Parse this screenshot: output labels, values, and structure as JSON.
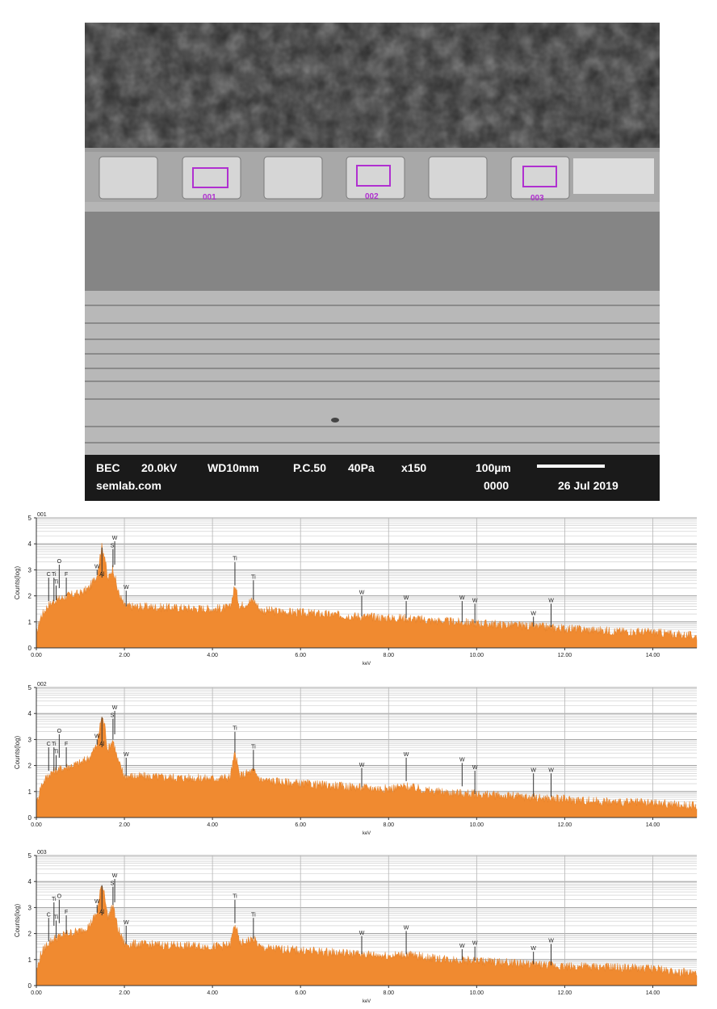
{
  "sem_image": {
    "info_row1": {
      "mode": "BEC",
      "voltage": "20.0kV",
      "wd": "WD10mm",
      "pc": "P.C.50",
      "pressure": "40Pa",
      "magnification": "x150",
      "scale_label": "100µm"
    },
    "info_row2": {
      "site": "semlab.com",
      "counter": "0000",
      "date": "26 Jul 2019"
    },
    "roi_labels": [
      "001",
      "002",
      "003"
    ],
    "roi_color": "#b030d0"
  },
  "chart_data": [
    {
      "type": "area",
      "title": "001",
      "xlabel": "keV",
      "ylabel": "Counts(log)",
      "xlim": [
        0,
        15
      ],
      "ylim": [
        0,
        5
      ],
      "x_ticks": [
        "0.00",
        "2.00",
        "4.00",
        "6.00",
        "8.00",
        "10.00",
        "12.00",
        "14.00"
      ],
      "y_ticks": [
        "0",
        "1",
        "2",
        "3",
        "4",
        "5"
      ],
      "grid": true,
      "color": "#f08a30",
      "baseline": [
        [
          0.0,
          0.5
        ],
        [
          0.1,
          1.2
        ],
        [
          0.25,
          1.6
        ],
        [
          0.4,
          1.8
        ],
        [
          0.7,
          2.0
        ],
        [
          1.0,
          2.1
        ],
        [
          1.2,
          2.3
        ],
        [
          1.38,
          2.8
        ],
        [
          1.48,
          3.9
        ],
        [
          1.55,
          3.6
        ],
        [
          1.62,
          2.6
        ],
        [
          1.74,
          3.1
        ],
        [
          1.85,
          2.2
        ],
        [
          2.0,
          1.6
        ],
        [
          3.0,
          1.55
        ],
        [
          4.0,
          1.5
        ],
        [
          4.4,
          1.55
        ],
        [
          4.51,
          2.4
        ],
        [
          4.62,
          1.6
        ],
        [
          4.93,
          1.85
        ],
        [
          5.1,
          1.45
        ],
        [
          6.0,
          1.35
        ],
        [
          7.0,
          1.25
        ],
        [
          8.0,
          1.15
        ],
        [
          8.4,
          1.15
        ],
        [
          9.0,
          1.05
        ],
        [
          10.0,
          0.95
        ],
        [
          11.0,
          0.85
        ],
        [
          12.0,
          0.75
        ],
        [
          13.0,
          0.65
        ],
        [
          14.0,
          0.6
        ],
        [
          15.0,
          0.45
        ]
      ],
      "markers": [
        {
          "label": "C",
          "x": 0.28,
          "y": 2.7
        },
        {
          "label": "Ti",
          "x": 0.4,
          "y": 2.7
        },
        {
          "label": "Ti",
          "x": 0.45,
          "y": 2.4
        },
        {
          "label": "O",
          "x": 0.52,
          "y": 3.2
        },
        {
          "label": "F",
          "x": 0.68,
          "y": 2.7
        },
        {
          "label": "W",
          "x": 1.38,
          "y": 3.0
        },
        {
          "label": "Al",
          "x": 1.49,
          "y": 2.7
        },
        {
          "label": "Si",
          "x": 1.74,
          "y": 3.8
        },
        {
          "label": "W",
          "x": 1.78,
          "y": 4.1
        },
        {
          "label": "W",
          "x": 2.04,
          "y": 2.2
        },
        {
          "label": "Ti",
          "x": 4.51,
          "y": 3.3
        },
        {
          "label": "Ti",
          "x": 4.93,
          "y": 2.6
        },
        {
          "label": "W",
          "x": 7.39,
          "y": 2.0
        },
        {
          "label": "W",
          "x": 8.4,
          "y": 1.8
        },
        {
          "label": "W",
          "x": 9.67,
          "y": 1.8
        },
        {
          "label": "W",
          "x": 9.96,
          "y": 1.7
        },
        {
          "label": "W",
          "x": 11.29,
          "y": 1.2
        },
        {
          "label": "W",
          "x": 11.69,
          "y": 1.7
        }
      ]
    },
    {
      "type": "area",
      "title": "002",
      "xlabel": "keV",
      "ylabel": "Counts(log)",
      "xlim": [
        0,
        15
      ],
      "ylim": [
        0,
        5
      ],
      "x_ticks": [
        "0.00",
        "2.00",
        "4.00",
        "6.00",
        "8.00",
        "10.00",
        "12.00",
        "14.00"
      ],
      "y_ticks": [
        "0",
        "1",
        "2",
        "3",
        "4",
        "5"
      ],
      "grid": true,
      "color": "#f08a30",
      "baseline": [
        [
          0.0,
          0.5
        ],
        [
          0.1,
          1.2
        ],
        [
          0.25,
          1.6
        ],
        [
          0.4,
          1.8
        ],
        [
          0.7,
          1.95
        ],
        [
          1.0,
          2.1
        ],
        [
          1.2,
          2.3
        ],
        [
          1.38,
          2.8
        ],
        [
          1.48,
          3.9
        ],
        [
          1.55,
          3.6
        ],
        [
          1.62,
          2.6
        ],
        [
          1.74,
          3.0
        ],
        [
          1.85,
          2.2
        ],
        [
          2.0,
          1.6
        ],
        [
          3.0,
          1.55
        ],
        [
          4.0,
          1.5
        ],
        [
          4.4,
          1.55
        ],
        [
          4.51,
          2.5
        ],
        [
          4.62,
          1.6
        ],
        [
          4.93,
          1.8
        ],
        [
          5.1,
          1.45
        ],
        [
          6.0,
          1.3
        ],
        [
          7.0,
          1.2
        ],
        [
          8.0,
          1.1
        ],
        [
          8.4,
          1.2
        ],
        [
          9.0,
          1.0
        ],
        [
          10.0,
          0.9
        ],
        [
          11.0,
          0.8
        ],
        [
          12.0,
          0.7
        ],
        [
          13.0,
          0.6
        ],
        [
          14.0,
          0.55
        ],
        [
          15.0,
          0.45
        ]
      ],
      "markers": [
        {
          "label": "C",
          "x": 0.28,
          "y": 2.7
        },
        {
          "label": "Ti",
          "x": 0.4,
          "y": 2.7
        },
        {
          "label": "Ti",
          "x": 0.45,
          "y": 2.4
        },
        {
          "label": "O",
          "x": 0.52,
          "y": 3.2
        },
        {
          "label": "F",
          "x": 0.68,
          "y": 2.7
        },
        {
          "label": "W",
          "x": 1.38,
          "y": 3.0
        },
        {
          "label": "Al",
          "x": 1.49,
          "y": 2.7
        },
        {
          "label": "Si",
          "x": 1.74,
          "y": 3.8
        },
        {
          "label": "W",
          "x": 1.78,
          "y": 4.1
        },
        {
          "label": "W",
          "x": 2.04,
          "y": 2.3
        },
        {
          "label": "Ti",
          "x": 4.51,
          "y": 3.3
        },
        {
          "label": "Ti",
          "x": 4.93,
          "y": 2.6
        },
        {
          "label": "W",
          "x": 7.39,
          "y": 1.9
        },
        {
          "label": "W",
          "x": 8.4,
          "y": 2.3
        },
        {
          "label": "W",
          "x": 9.67,
          "y": 2.1
        },
        {
          "label": "W",
          "x": 9.96,
          "y": 1.8
        },
        {
          "label": "W",
          "x": 11.29,
          "y": 1.7
        },
        {
          "label": "W",
          "x": 11.69,
          "y": 1.7
        }
      ]
    },
    {
      "type": "area",
      "title": "003",
      "xlabel": "keV",
      "ylabel": "Counts(log)",
      "xlim": [
        0,
        15
      ],
      "ylim": [
        0,
        5
      ],
      "x_ticks": [
        "0.00",
        "2.00",
        "4.00",
        "6.00",
        "8.00",
        "10.00",
        "12.00",
        "14.00"
      ],
      "y_ticks": [
        "0",
        "1",
        "2",
        "3",
        "4",
        "5"
      ],
      "grid": true,
      "color": "#f08a30",
      "baseline": [
        [
          0.0,
          0.5
        ],
        [
          0.1,
          1.2
        ],
        [
          0.25,
          1.6
        ],
        [
          0.4,
          1.8
        ],
        [
          0.7,
          2.0
        ],
        [
          1.0,
          2.1
        ],
        [
          1.2,
          2.3
        ],
        [
          1.38,
          2.8
        ],
        [
          1.48,
          3.9
        ],
        [
          1.55,
          3.6
        ],
        [
          1.62,
          2.6
        ],
        [
          1.74,
          3.1
        ],
        [
          1.85,
          2.2
        ],
        [
          2.0,
          1.6
        ],
        [
          3.0,
          1.55
        ],
        [
          4.0,
          1.5
        ],
        [
          4.4,
          1.55
        ],
        [
          4.51,
          2.4
        ],
        [
          4.62,
          1.6
        ],
        [
          4.93,
          1.8
        ],
        [
          5.1,
          1.45
        ],
        [
          6.0,
          1.35
        ],
        [
          7.0,
          1.25
        ],
        [
          8.0,
          1.15
        ],
        [
          8.4,
          1.2
        ],
        [
          9.0,
          1.05
        ],
        [
          10.0,
          0.95
        ],
        [
          11.0,
          0.85
        ],
        [
          12.0,
          0.75
        ],
        [
          13.0,
          0.7
        ],
        [
          14.0,
          0.65
        ],
        [
          15.0,
          0.45
        ]
      ],
      "markers": [
        {
          "label": "C",
          "x": 0.28,
          "y": 2.6
        },
        {
          "label": "Ti",
          "x": 0.4,
          "y": 3.2
        },
        {
          "label": "Ti",
          "x": 0.45,
          "y": 2.5
        },
        {
          "label": "O",
          "x": 0.52,
          "y": 3.3
        },
        {
          "label": "F",
          "x": 0.68,
          "y": 2.7
        },
        {
          "label": "W",
          "x": 1.38,
          "y": 3.1
        },
        {
          "label": "Al",
          "x": 1.49,
          "y": 2.7
        },
        {
          "label": "Si",
          "x": 1.74,
          "y": 3.8
        },
        {
          "label": "W",
          "x": 1.78,
          "y": 4.1
        },
        {
          "label": "W",
          "x": 2.04,
          "y": 2.3
        },
        {
          "label": "Ti",
          "x": 4.51,
          "y": 3.3
        },
        {
          "label": "Ti",
          "x": 4.93,
          "y": 2.6
        },
        {
          "label": "W",
          "x": 7.39,
          "y": 1.9
        },
        {
          "label": "W",
          "x": 8.4,
          "y": 2.1
        },
        {
          "label": "W",
          "x": 9.67,
          "y": 1.4
        },
        {
          "label": "W",
          "x": 9.96,
          "y": 1.5
        },
        {
          "label": "W",
          "x": 11.29,
          "y": 1.3
        },
        {
          "label": "W",
          "x": 11.69,
          "y": 1.6
        }
      ]
    }
  ]
}
